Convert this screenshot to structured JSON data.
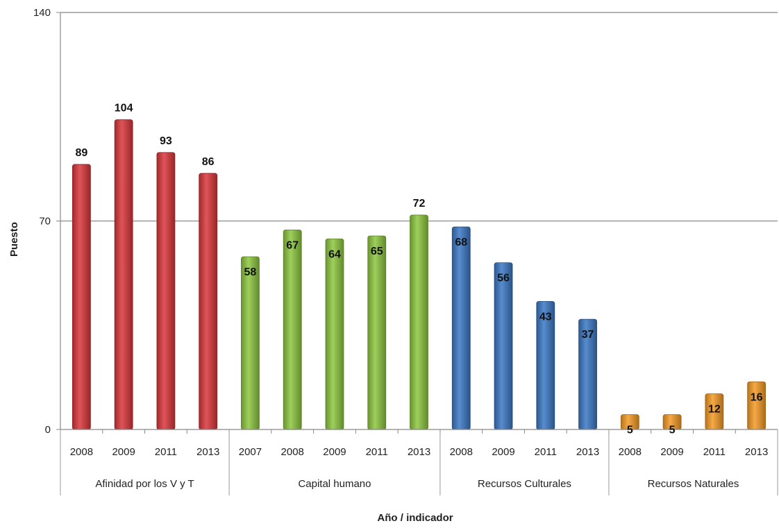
{
  "chart_data": {
    "type": "bar",
    "title": "",
    "xlabel": "Año / indicador",
    "ylabel": "Puesto",
    "ylim": [
      0,
      140
    ],
    "yticks": [
      0,
      70,
      140
    ],
    "grid": true,
    "groups": [
      {
        "name": "Afinidad por los V y T",
        "color": "#d9363a",
        "categories": [
          "2008",
          "2009",
          "2011",
          "2013"
        ],
        "values": [
          89,
          104,
          93,
          86
        ]
      },
      {
        "name": "Capital humano",
        "color": "#8dc63f",
        "categories": [
          "2007",
          "2008",
          "2009",
          "2011",
          "2013"
        ],
        "values": [
          58,
          67,
          64,
          65,
          72
        ]
      },
      {
        "name": "Recursos Culturales",
        "color": "#3a78c4",
        "categories": [
          "2008",
          "2009",
          "2011",
          "2013"
        ],
        "values": [
          68,
          56,
          43,
          37
        ]
      },
      {
        "name": "Recursos Naturales",
        "color": "#f49a25",
        "categories": [
          "2008",
          "2009",
          "2011",
          "2013"
        ],
        "values": [
          5,
          5,
          12,
          16
        ]
      }
    ]
  }
}
